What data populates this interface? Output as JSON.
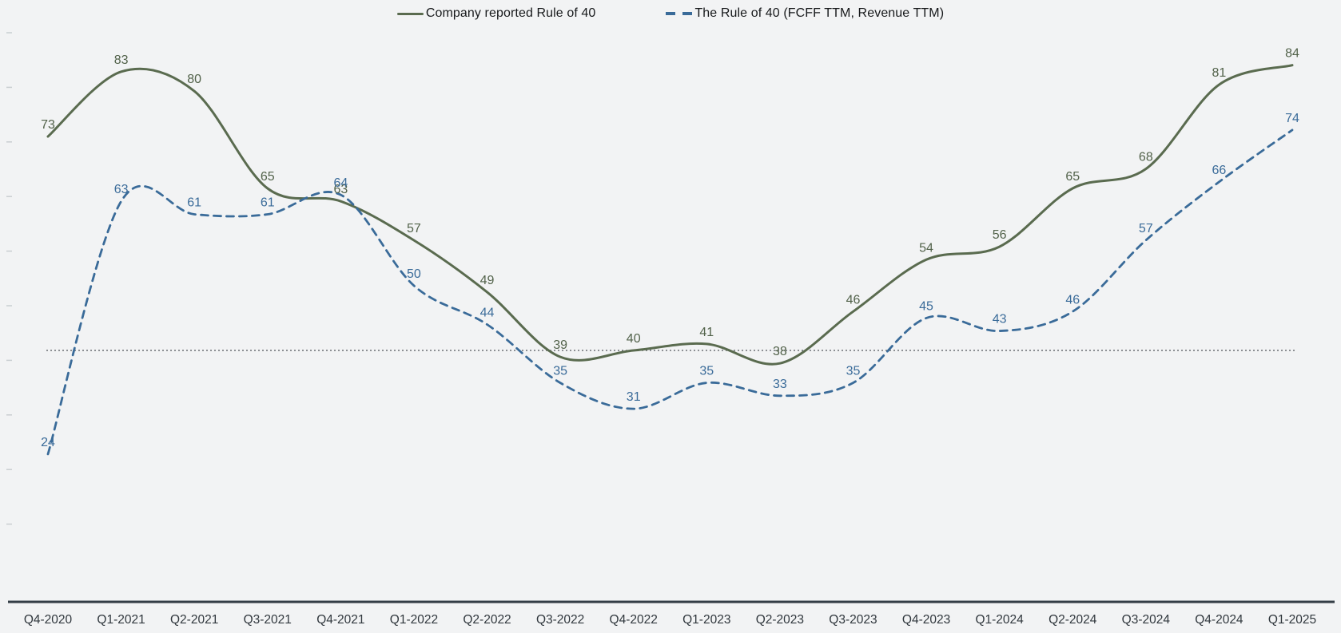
{
  "chart_data": {
    "type": "line",
    "categories": [
      "Q4-2020",
      "Q1-2021",
      "Q2-2021",
      "Q3-2021",
      "Q4-2021",
      "Q1-2022",
      "Q2-2022",
      "Q3-2022",
      "Q4-2022",
      "Q1-2023",
      "Q2-2023",
      "Q3-2023",
      "Q4-2023",
      "Q1-2024",
      "Q2-2024",
      "Q3-2024",
      "Q4-2024",
      "Q1-2025"
    ],
    "series": [
      {
        "name": "Company reported Rule of 40",
        "line_style": "solid",
        "color": "#5a6b4f",
        "label_color": "#52624a",
        "values": [
          73,
          83,
          80,
          65,
          63,
          57,
          49,
          39,
          40,
          41,
          38,
          46,
          54,
          56,
          65,
          68,
          81,
          84
        ]
      },
      {
        "name": "The Rule of 40 (FCFF TTM, Revenue TTM)",
        "line_style": "dashed",
        "color": "#3a6b99",
        "label_color": "#3a6b99",
        "values": [
          24,
          63,
          61,
          61,
          64,
          50,
          44,
          35,
          31,
          35,
          33,
          35,
          45,
          43,
          46,
          57,
          66,
          74
        ]
      }
    ],
    "reference_line": {
      "value": 40,
      "style": "dotted",
      "color": "#51565a"
    },
    "title": "",
    "xlabel": "",
    "ylabel": "",
    "ylim": [
      0,
      90
    ],
    "grid": false,
    "y_axis_labels_visible": false,
    "y_tick_count": 10,
    "legend_position": "top-center",
    "background": "#f2f3f4",
    "axis_color": "#343e46",
    "x_label_color": "#30373d",
    "data_labels_visible": true
  }
}
